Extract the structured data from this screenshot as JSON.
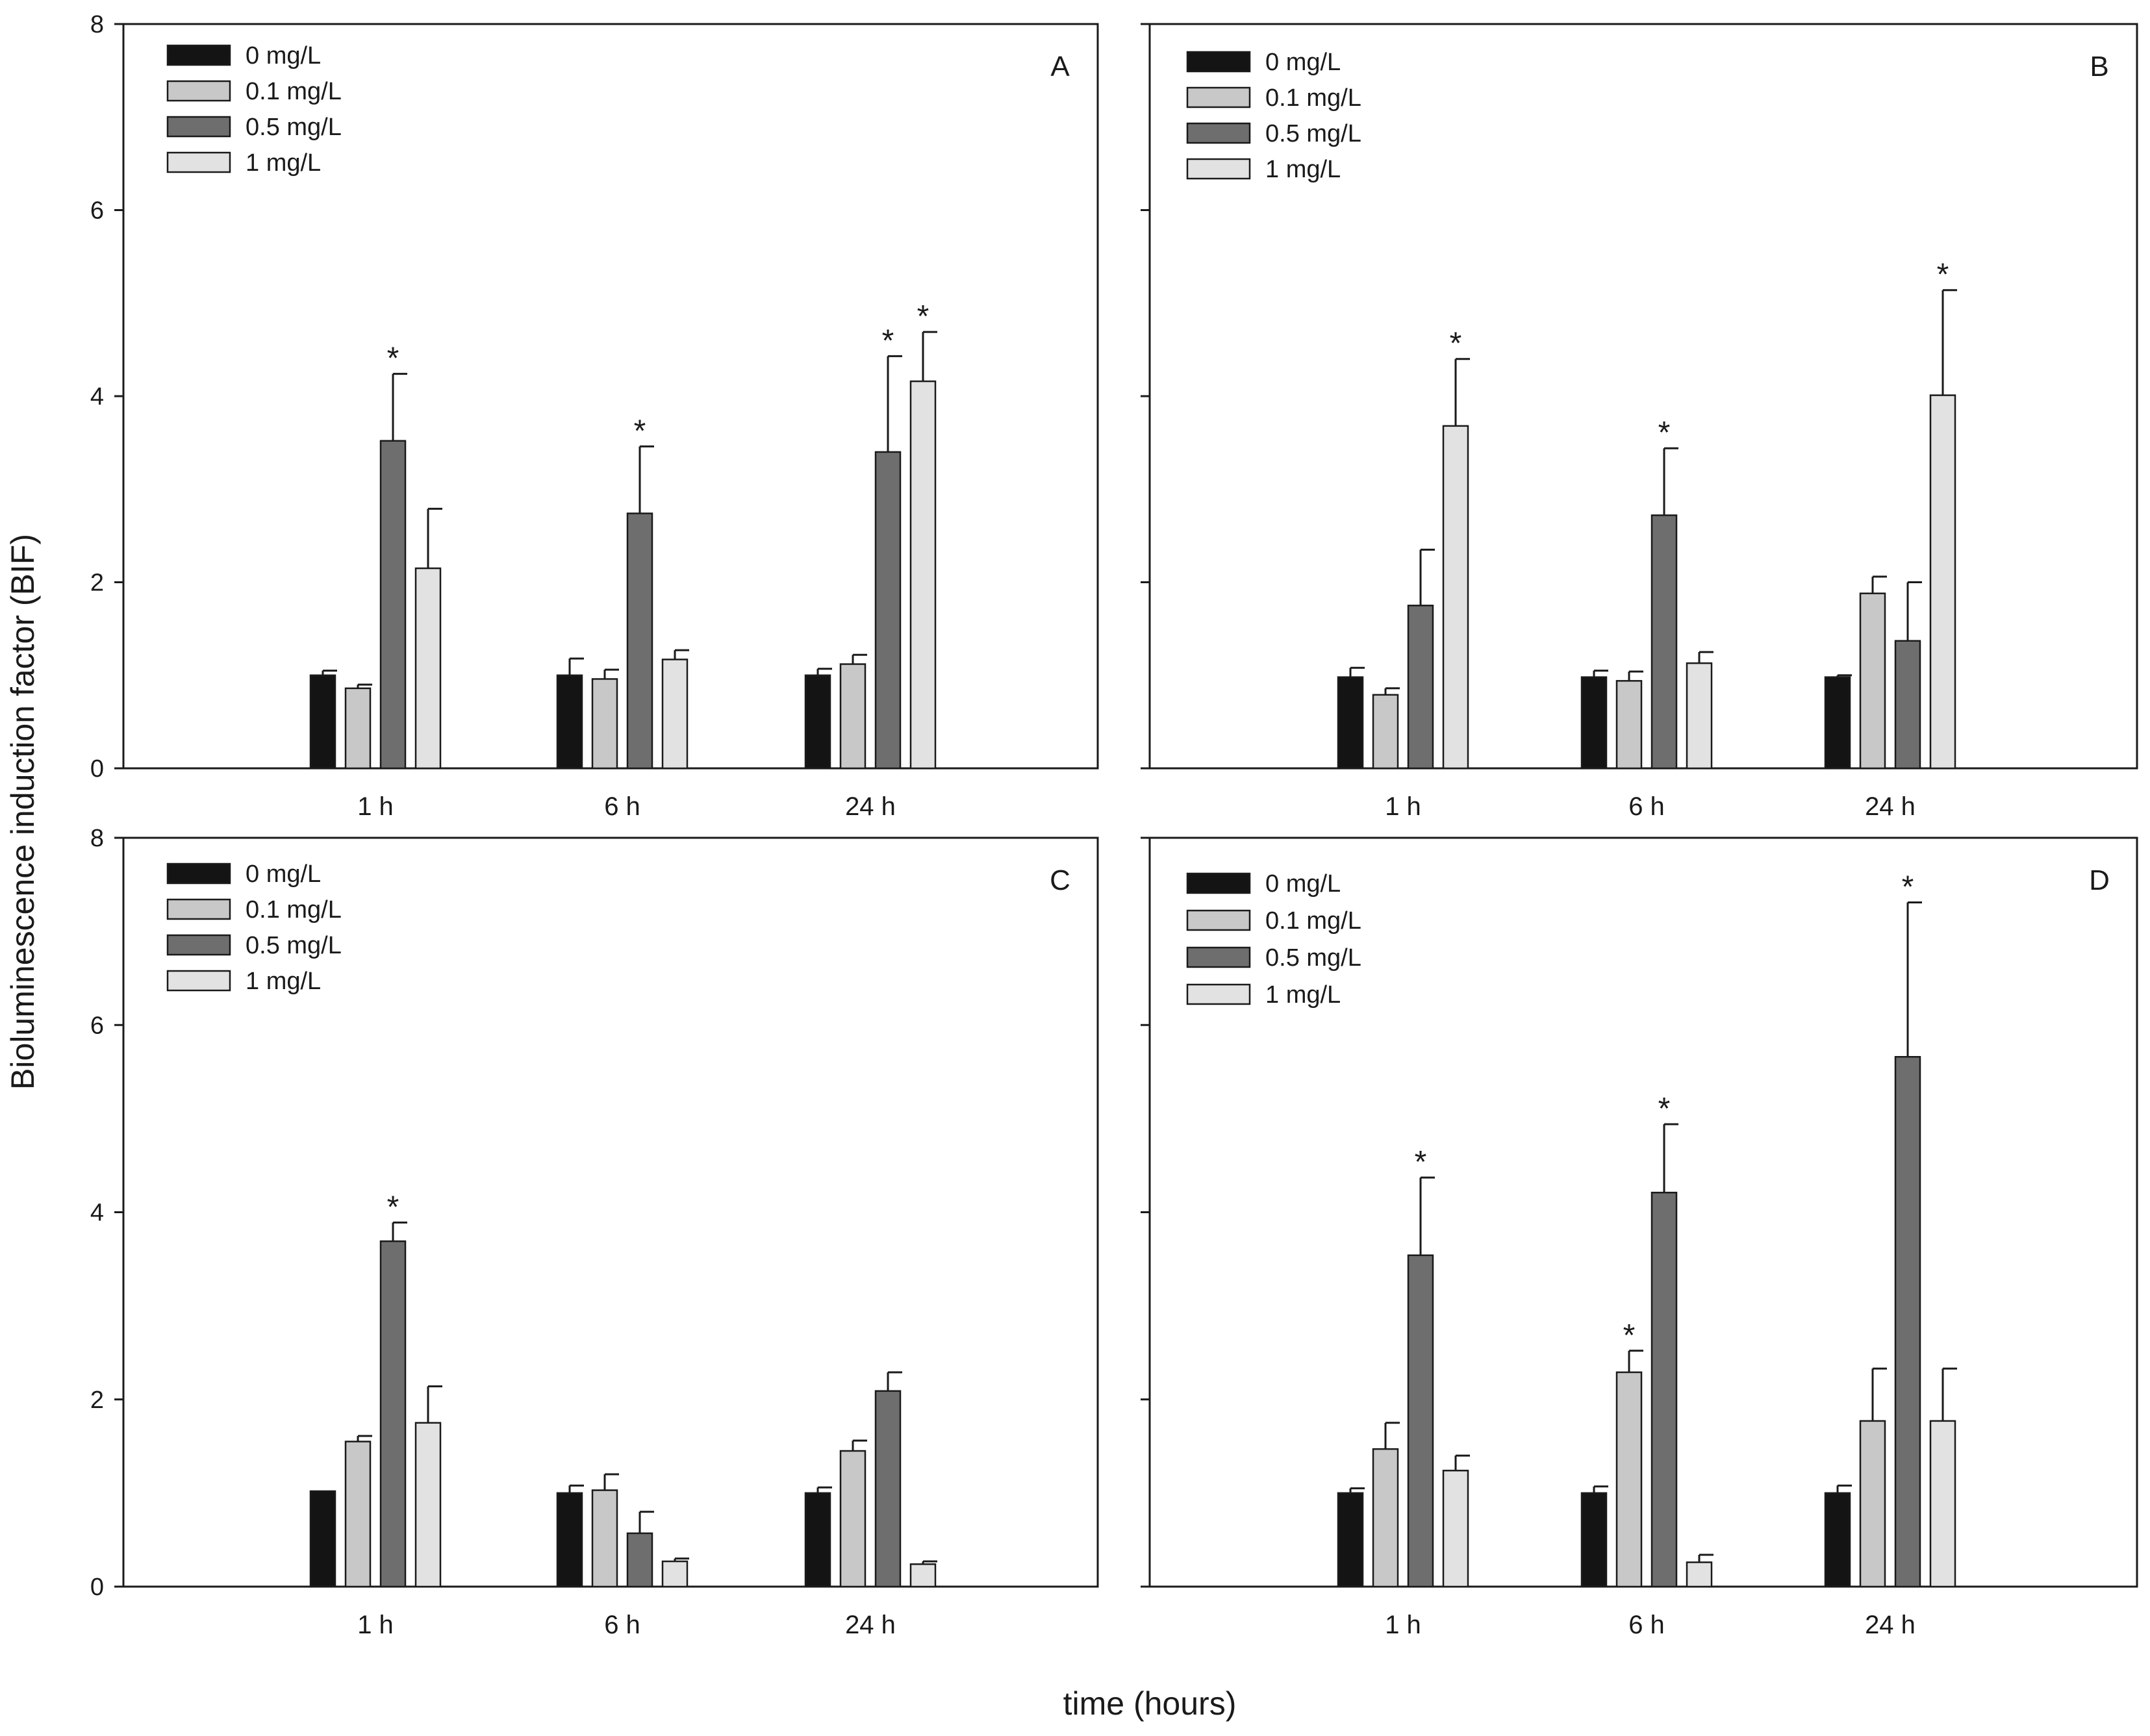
{
  "figure": {
    "ylabel": "Bioluminescence induction factor (BIF)",
    "xlabel": "time (hours)"
  },
  "chart_data": [
    {
      "type": "bar",
      "panel": "A",
      "categories": [
        "1 h",
        "6 h",
        "24 h"
      ],
      "ylim": [
        0,
        8
      ],
      "yticks": [
        "0",
        "2",
        "4",
        "6",
        "8"
      ],
      "legend": [
        "0 mg/L",
        "0.1 mg/L",
        "0.5 mg/L",
        "1 mg/L"
      ],
      "series": [
        {
          "name": "0 mg/L",
          "values": [
            1.0,
            1.0,
            1.0
          ],
          "errors": [
            0.05,
            0.18,
            0.07
          ]
        },
        {
          "name": "0.1 mg/L",
          "values": [
            0.86,
            0.96,
            1.12
          ],
          "errors": [
            0.04,
            0.1,
            0.1
          ]
        },
        {
          "name": "0.5 mg/L",
          "values": [
            3.52,
            2.74,
            3.4
          ],
          "errors": [
            0.72,
            0.72,
            1.03
          ]
        },
        {
          "name": "1 mg/L",
          "values": [
            2.15,
            1.17,
            4.16
          ],
          "errors": [
            0.64,
            0.1,
            0.53
          ]
        }
      ],
      "significant": [
        {
          "category": "1 h",
          "series": "0.5 mg/L",
          "mark": "*"
        },
        {
          "category": "6 h",
          "series": "0.5 mg/L",
          "mark": "*"
        },
        {
          "category": "24 h",
          "series": "0.5 mg/L",
          "mark": "*"
        },
        {
          "category": "24 h",
          "series": "1 mg/L",
          "mark": "*"
        }
      ]
    },
    {
      "type": "bar",
      "panel": "B",
      "categories": [
        "1 h",
        "6 h",
        "24 h"
      ],
      "ylim": [
        0,
        8
      ],
      "yticks": [],
      "legend": [
        "0 mg/L",
        "0.1 mg/L",
        "0.5 mg/L",
        "1 mg/L"
      ],
      "series": [
        {
          "name": "0 mg/L",
          "values": [
            0.98,
            0.98,
            0.98
          ],
          "errors": [
            0.1,
            0.07,
            0.02
          ]
        },
        {
          "name": "0.1 mg/L",
          "values": [
            0.79,
            0.94,
            1.88
          ],
          "errors": [
            0.07,
            0.1,
            0.18
          ]
        },
        {
          "name": "0.5 mg/L",
          "values": [
            1.75,
            2.72,
            1.37
          ],
          "errors": [
            0.6,
            0.72,
            0.63
          ]
        },
        {
          "name": "1 mg/L",
          "values": [
            3.68,
            1.13,
            4.01
          ],
          "errors": [
            0.72,
            0.12,
            1.13
          ]
        }
      ],
      "significant": [
        {
          "category": "1 h",
          "series": "1 mg/L",
          "mark": "*"
        },
        {
          "category": "6 h",
          "series": "0.5 mg/L",
          "mark": "*"
        },
        {
          "category": "24 h",
          "series": "1 mg/L",
          "mark": "*"
        }
      ]
    },
    {
      "type": "bar",
      "panel": "C",
      "categories": [
        "1 h",
        "6 h",
        "24 h"
      ],
      "ylim": [
        0,
        8
      ],
      "yticks": [
        "0",
        "2",
        "4",
        "6",
        "8"
      ],
      "legend": [
        "0 mg/L",
        "0.1 mg/L",
        "0.5 mg/L",
        "1 mg/L"
      ],
      "series": [
        {
          "name": "0 mg/L",
          "values": [
            1.02,
            1.0,
            1.0
          ],
          "errors": [
            0.0,
            0.08,
            0.06
          ]
        },
        {
          "name": "0.1 mg/L",
          "values": [
            1.55,
            1.03,
            1.45
          ],
          "errors": [
            0.06,
            0.17,
            0.11
          ]
        },
        {
          "name": "0.5 mg/L",
          "values": [
            3.69,
            0.57,
            2.09
          ],
          "errors": [
            0.2,
            0.23,
            0.2
          ]
        },
        {
          "name": "1 mg/L",
          "values": [
            1.75,
            0.27,
            0.24
          ],
          "errors": [
            0.39,
            0.03,
            0.03
          ]
        }
      ],
      "significant": [
        {
          "category": "1 h",
          "series": "0.5 mg/L",
          "mark": "*"
        }
      ]
    },
    {
      "type": "bar",
      "panel": "D",
      "categories": [
        "1 h",
        "6 h",
        "24 h"
      ],
      "ylim": [
        0,
        8
      ],
      "yticks": [],
      "legend": [
        "0 mg/L",
        "0.1 mg/L",
        "0.5 mg/L",
        "1 mg/L"
      ],
      "series": [
        {
          "name": "0 mg/L",
          "values": [
            1.0,
            1.0,
            1.0
          ],
          "errors": [
            0.05,
            0.07,
            0.08
          ]
        },
        {
          "name": "0.1 mg/L",
          "values": [
            1.47,
            2.29,
            1.77
          ],
          "errors": [
            0.28,
            0.23,
            0.56
          ]
        },
        {
          "name": "0.5 mg/L",
          "values": [
            3.54,
            4.21,
            5.66
          ],
          "errors": [
            0.83,
            0.73,
            1.65
          ]
        },
        {
          "name": "1 mg/L",
          "values": [
            1.24,
            0.26,
            1.77
          ],
          "errors": [
            0.16,
            0.08,
            0.56
          ]
        }
      ],
      "significant": [
        {
          "category": "1 h",
          "series": "0.5 mg/L",
          "mark": "*"
        },
        {
          "category": "6 h",
          "series": "0.1 mg/L",
          "mark": "*"
        },
        {
          "category": "6 h",
          "series": "0.5 mg/L",
          "mark": "*"
        },
        {
          "category": "24 h",
          "series": "0.5 mg/L",
          "mark": "*"
        }
      ]
    }
  ],
  "colors": {
    "0 mg/L": "#141414",
    "0.1 mg/L": "#c8c8c8",
    "0.5 mg/L": "#6e6e6e",
    "1 mg/L": "#e2e2e2",
    "axis": "#1a1a1a"
  }
}
